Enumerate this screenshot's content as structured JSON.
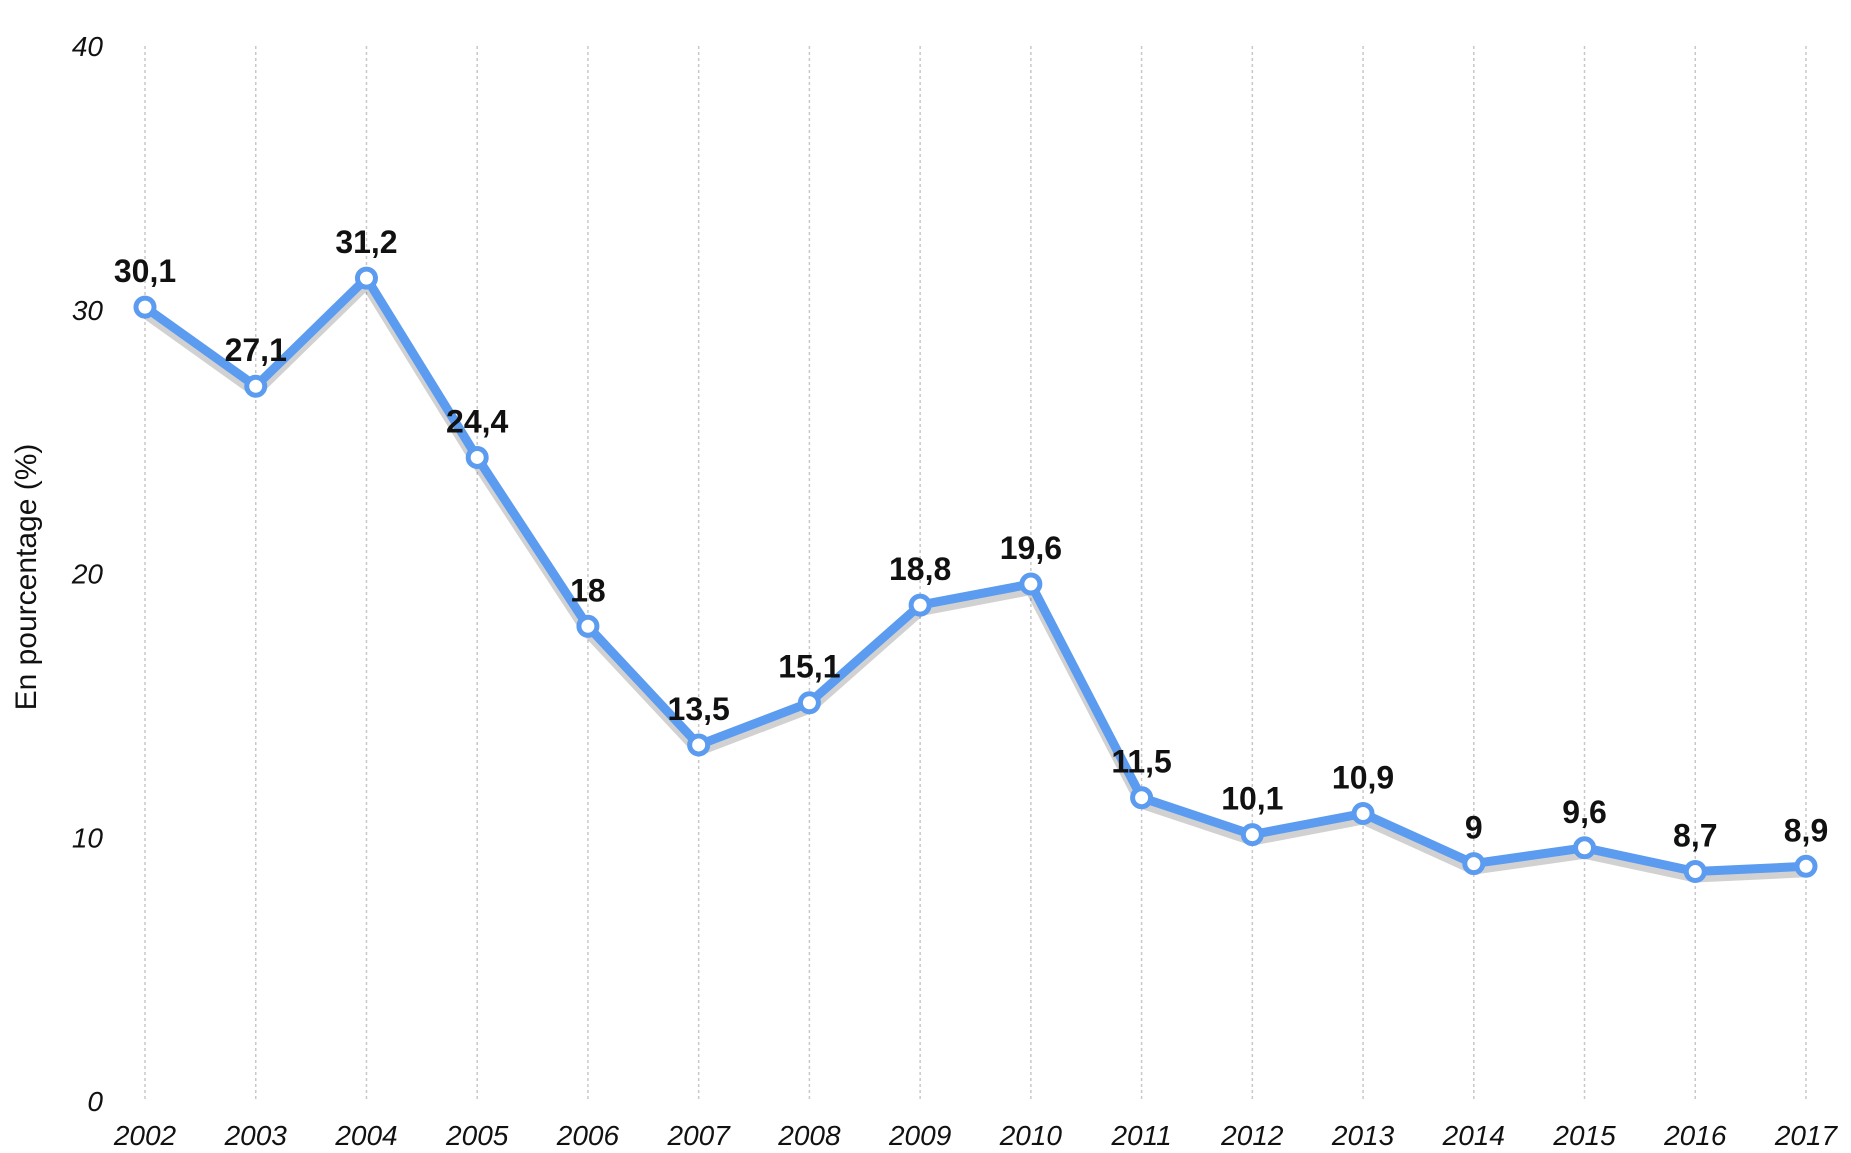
{
  "chart_data": {
    "type": "line",
    "title": "",
    "xlabel": "",
    "ylabel": "En pourcentage (%)",
    "x": [
      "2002",
      "2003",
      "2004",
      "2005",
      "2006",
      "2007",
      "2008",
      "2009",
      "2010",
      "2011",
      "2012",
      "2013",
      "2014",
      "2015",
      "2016",
      "2017"
    ],
    "series": [
      {
        "values": [
          30.1,
          27.1,
          31.2,
          24.4,
          18,
          13.5,
          15.1,
          18.8,
          19.6,
          11.5,
          10.1,
          10.9,
          9,
          9.6,
          8.7,
          8.9
        ],
        "labels": [
          "30,1",
          "27,1",
          "31,2",
          "24,4",
          "18",
          "13,5",
          "15,1",
          "18,8",
          "19,6",
          "11,5",
          "10,1",
          "10,9",
          "9",
          "9,6",
          "8,7",
          "8,9"
        ],
        "color": "#5b9bf0"
      }
    ],
    "ylim": [
      0,
      40
    ],
    "yticks": [
      0,
      10,
      20,
      30,
      40
    ],
    "ytick_labels": [
      "0",
      "10",
      "20",
      "30",
      "40"
    ],
    "grid": "vertical dashed",
    "legend": "none"
  }
}
